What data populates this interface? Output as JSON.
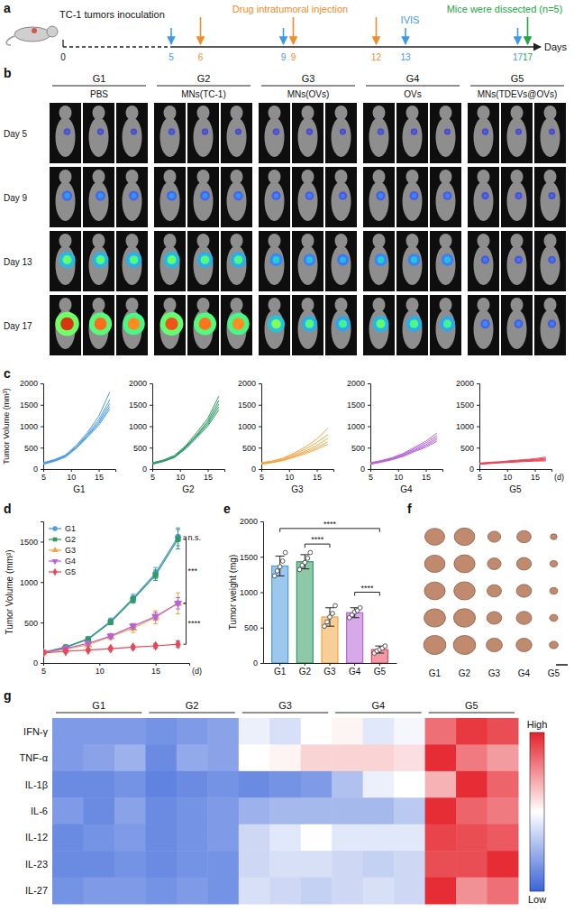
{
  "panel_labels": [
    "a",
    "b",
    "c",
    "d",
    "e",
    "f",
    "g"
  ],
  "timeline": {
    "axis_label": "Days",
    "start": {
      "day": 0,
      "label": "TC-1 tumors inoculation"
    },
    "events": [
      {
        "name": "IVIS",
        "color": "#3d9ae8",
        "days": [
          5,
          9,
          13,
          17
        ]
      },
      {
        "name": "Drug intratumoral injection",
        "color": "#f08c2a",
        "days": [
          6,
          9,
          12
        ]
      },
      {
        "name": "Mice were dissected (n=5)",
        "color": "#25a244",
        "days": [
          17
        ]
      }
    ]
  },
  "ivis": {
    "groups": [
      {
        "name": "G1",
        "label": "PBS"
      },
      {
        "name": "G2",
        "label": "MNs(TC-1)"
      },
      {
        "name": "G3",
        "label": "MNs(OVs)"
      },
      {
        "name": "G4",
        "label": "OVs"
      },
      {
        "name": "G5",
        "label": "MNs(TDEVs@OVs)"
      }
    ],
    "rows": [
      {
        "label": "Day 5",
        "day": 5
      },
      {
        "label": "Day 9",
        "day": 9
      },
      {
        "label": "Day 13",
        "day": 13
      },
      {
        "label": "Day 17",
        "day": 17
      }
    ]
  },
  "chart_data": [
    {
      "type": "line",
      "xlabel": "G1",
      "ylabel": "Tumor Volume (mm³)",
      "x": [
        5,
        7,
        9,
        11,
        13,
        15,
        17
      ],
      "xlim": [
        5,
        18
      ],
      "xticks": [
        5,
        10,
        15
      ],
      "ylim": [
        0,
        2000
      ],
      "yticks": [
        0,
        500,
        1000,
        1500,
        2000
      ],
      "series": [
        {
          "color": "#4a9be0",
          "values": [
            150,
            220,
            330,
            560,
            860,
            1230,
            1800
          ]
        },
        {
          "color": "#4a9be0",
          "values": [
            140,
            210,
            310,
            530,
            820,
            1150,
            1620
          ]
        },
        {
          "color": "#4a9be0",
          "values": [
            130,
            200,
            300,
            510,
            790,
            1100,
            1530
          ]
        },
        {
          "color": "#4a9be0",
          "values": [
            120,
            190,
            290,
            500,
            770,
            1060,
            1460
          ]
        },
        {
          "color": "#4a9be0",
          "values": [
            110,
            180,
            280,
            490,
            750,
            1020,
            1400
          ]
        }
      ]
    },
    {
      "type": "line",
      "xlabel": "G2",
      "x": [
        5,
        7,
        9,
        11,
        13,
        15,
        17
      ],
      "xlim": [
        5,
        18
      ],
      "xticks": [
        5,
        10,
        15
      ],
      "ylim": [
        0,
        2000
      ],
      "yticks": [
        0,
        500,
        1000,
        1500,
        2000
      ],
      "series": [
        {
          "color": "#2f9a63",
          "values": [
            150,
            210,
            320,
            540,
            850,
            1180,
            1700
          ]
        },
        {
          "color": "#2f9a63",
          "values": [
            140,
            200,
            300,
            520,
            800,
            1120,
            1600
          ]
        },
        {
          "color": "#2f9a63",
          "values": [
            130,
            195,
            290,
            500,
            780,
            1080,
            1520
          ]
        },
        {
          "color": "#2f9a63",
          "values": [
            120,
            185,
            280,
            490,
            760,
            1040,
            1450
          ]
        },
        {
          "color": "#2f9a63",
          "values": [
            110,
            175,
            270,
            470,
            730,
            1000,
            1380
          ]
        }
      ]
    },
    {
      "type": "line",
      "xlabel": "G3",
      "x": [
        5,
        7,
        9,
        11,
        13,
        15,
        17
      ],
      "xlim": [
        5,
        18
      ],
      "xticks": [
        5,
        10,
        15
      ],
      "ylim": [
        0,
        2000
      ],
      "yticks": [
        0,
        500,
        1000,
        1500,
        2000
      ],
      "series": [
        {
          "color": "#f2a541",
          "values": [
            150,
            190,
            260,
            380,
            520,
            700,
            950
          ]
        },
        {
          "color": "#f2a541",
          "values": [
            140,
            180,
            240,
            350,
            470,
            620,
            800
          ]
        },
        {
          "color": "#f2a541",
          "values": [
            130,
            170,
            220,
            320,
            420,
            550,
            720
          ]
        },
        {
          "color": "#f2a541",
          "values": [
            120,
            160,
            210,
            300,
            390,
            500,
            640
          ]
        },
        {
          "color": "#f2a541",
          "values": [
            110,
            150,
            200,
            280,
            360,
            460,
            580
          ]
        }
      ]
    },
    {
      "type": "line",
      "xlabel": "G4",
      "x": [
        5,
        7,
        9,
        11,
        13,
        15,
        17
      ],
      "xlim": [
        5,
        18
      ],
      "xticks": [
        5,
        10,
        15
      ],
      "ylim": [
        0,
        2000
      ],
      "yticks": [
        0,
        500,
        1000,
        1500,
        2000
      ],
      "series": [
        {
          "color": "#b763d6",
          "values": [
            150,
            200,
            270,
            370,
            510,
            650,
            840
          ]
        },
        {
          "color": "#b763d6",
          "values": [
            140,
            190,
            255,
            350,
            480,
            610,
            780
          ]
        },
        {
          "color": "#b763d6",
          "values": [
            130,
            180,
            240,
            330,
            450,
            570,
            730
          ]
        },
        {
          "color": "#b763d6",
          "values": [
            120,
            170,
            230,
            315,
            430,
            540,
            690
          ]
        },
        {
          "color": "#b763d6",
          "values": [
            110,
            160,
            220,
            300,
            410,
            510,
            650
          ]
        }
      ]
    },
    {
      "type": "line",
      "xlabel": "G5",
      "x_unit": "(d)",
      "x": [
        5,
        7,
        9,
        11,
        13,
        15,
        17
      ],
      "xlim": [
        5,
        18
      ],
      "xticks": [
        5,
        10,
        15
      ],
      "ylim": [
        0,
        2000
      ],
      "yticks": [
        0,
        500,
        1000,
        1500,
        2000
      ],
      "series": [
        {
          "color": "#e8475a",
          "values": [
            140,
            160,
            175,
            200,
            220,
            240,
            280
          ]
        },
        {
          "color": "#e8475a",
          "values": [
            130,
            150,
            165,
            185,
            205,
            225,
            250
          ]
        },
        {
          "color": "#e8475a",
          "values": [
            125,
            145,
            160,
            175,
            195,
            210,
            230
          ]
        },
        {
          "color": "#e8475a",
          "values": [
            120,
            140,
            155,
            170,
            185,
            200,
            210
          ]
        },
        {
          "color": "#e8475a",
          "values": [
            110,
            130,
            145,
            160,
            175,
            185,
            190
          ]
        }
      ]
    },
    {
      "type": "line",
      "ylabel": "Tumor Volume (mm³)",
      "x_unit": "(d)",
      "x": [
        5,
        7,
        9,
        11,
        13,
        15,
        17
      ],
      "xlim": [
        5,
        18
      ],
      "xticks": [
        5,
        10,
        15
      ],
      "ylim": [
        0,
        1750
      ],
      "yticks": [
        0,
        500,
        1000,
        1500
      ],
      "legend": "upper left",
      "series": [
        {
          "name": "G1",
          "color": "#4a9be0",
          "marker": "circle",
          "values": [
            130,
            200,
            300,
            520,
            800,
            1110,
            1560
          ],
          "errors": [
            15,
            20,
            25,
            35,
            50,
            70,
            110
          ]
        },
        {
          "name": "G2",
          "color": "#2f9a63",
          "marker": "square",
          "values": [
            130,
            193,
            292,
            504,
            784,
            1084,
            1530
          ],
          "errors": [
            15,
            15,
            20,
            30,
            45,
            65,
            120
          ]
        },
        {
          "name": "G3",
          "color": "#f2a541",
          "marker": "triangle",
          "values": [
            130,
            170,
            226,
            326,
            432,
            566,
            738
          ],
          "errors": [
            15,
            15,
            20,
            35,
            55,
            80,
            130
          ]
        },
        {
          "name": "G4",
          "color": "#b763d6",
          "marker": "triangle-down",
          "values": [
            130,
            180,
            243,
            333,
            456,
            576,
            738
          ],
          "errors": [
            15,
            15,
            20,
            25,
            30,
            50,
            70
          ]
        },
        {
          "name": "G5",
          "color": "#e8475a",
          "marker": "diamond",
          "values": [
            125,
            145,
            160,
            178,
            196,
            212,
            232
          ],
          "errors": [
            12,
            15,
            15,
            20,
            20,
            25,
            40
          ]
        }
      ],
      "annotations": [
        {
          "text": "n.s.",
          "from": 0,
          "to": 1
        },
        {
          "text": "***",
          "from": 1,
          "to": 2
        },
        {
          "text": "****",
          "from": 3,
          "to": 4
        }
      ]
    },
    {
      "type": "bar",
      "ylabel": "Tumor weight (mg)",
      "categories": [
        "G1",
        "G2",
        "G3",
        "G4",
        "G5"
      ],
      "values": [
        1370,
        1430,
        650,
        710,
        190
      ],
      "errors": [
        140,
        100,
        130,
        70,
        50
      ],
      "points": [
        [
          1230,
          1300,
          1360,
          1440,
          1560
        ],
        [
          1320,
          1380,
          1420,
          1480,
          1560
        ],
        [
          520,
          580,
          650,
          700,
          810
        ],
        [
          640,
          680,
          720,
          740,
          780
        ],
        [
          140,
          170,
          190,
          210,
          240
        ]
      ],
      "colors": [
        "#4a9be0",
        "#2f9a63",
        "#f2a541",
        "#b763d6",
        "#e8475a"
      ],
      "marker": "circle",
      "ylim": [
        0,
        2000
      ],
      "yticks": [
        0,
        500,
        1000,
        1500,
        2000
      ],
      "annotations": [
        {
          "text": "****",
          "from": 0,
          "to": 4,
          "y": 1900
        },
        {
          "text": "****",
          "from": 1,
          "to": 2,
          "y": 1680
        },
        {
          "text": "****",
          "from": 3,
          "to": 4,
          "y": 1000
        }
      ]
    },
    {
      "type": "heatmap",
      "rows": [
        "IFN-γ",
        "TNF-α",
        "IL-1β",
        "IL-6",
        "IL-12",
        "IL-23",
        "IL-27"
      ],
      "groups": [
        "G1",
        "G2",
        "G3",
        "G4",
        "G5"
      ],
      "cells": [
        [
          -1.3,
          -1.3,
          -1.3,
          -1.4,
          -1.3,
          -1.2,
          -0.2,
          -0.4,
          0.0,
          0.1,
          -0.3,
          -0.1,
          1.3,
          1.8,
          1.6
        ],
        [
          -1.3,
          -1.2,
          -1.0,
          -1.5,
          -1.1,
          -1.2,
          0.0,
          0.1,
          0.4,
          0.4,
          0.4,
          0.3,
          1.9,
          1.2,
          0.9
        ],
        [
          -1.5,
          -1.5,
          -1.4,
          -1.6,
          -1.5,
          -1.4,
          -1.5,
          -1.4,
          -1.3,
          -0.8,
          -0.2,
          0.0,
          0.7,
          1.9,
          1.4
        ],
        [
          -1.3,
          -1.5,
          -1.2,
          -1.5,
          -1.4,
          -1.3,
          -1.0,
          -0.9,
          -0.9,
          -0.9,
          -0.9,
          -0.7,
          1.9,
          1.4,
          1.2
        ],
        [
          -1.5,
          -1.4,
          -1.3,
          -1.5,
          -1.4,
          -1.3,
          -0.5,
          -0.3,
          0.0,
          -0.3,
          -0.3,
          -0.3,
          1.7,
          1.6,
          1.5
        ],
        [
          -1.5,
          -1.5,
          -1.4,
          -1.5,
          -1.4,
          -1.4,
          -0.5,
          -0.4,
          -0.4,
          -0.5,
          -0.6,
          -0.5,
          1.6,
          1.6,
          1.9
        ],
        [
          -1.4,
          -1.3,
          -1.3,
          -1.4,
          -1.3,
          -1.4,
          -0.4,
          -0.5,
          -0.6,
          -0.5,
          -0.4,
          -0.5,
          1.9,
          1.0,
          1.3
        ]
      ],
      "zlim": [
        -2,
        2
      ],
      "colorbar_labels": {
        "low": "Low",
        "high": "High"
      }
    }
  ]
}
